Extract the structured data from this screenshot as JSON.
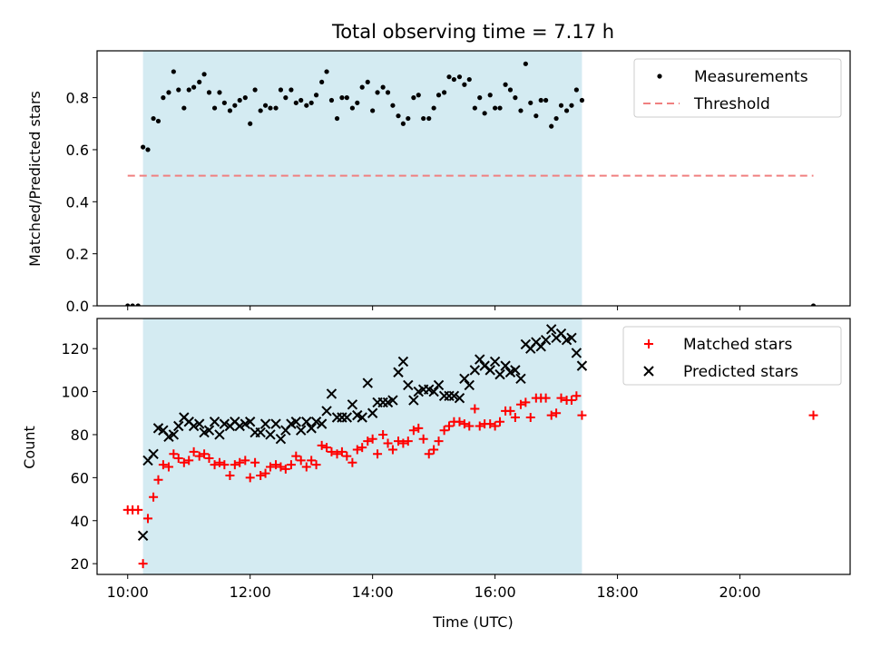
{
  "chart_data": {
    "type": "scatter",
    "title": "Total observing time = 7.17 h",
    "xlabel": "Time (UTC)",
    "x_unit": "hours UTC",
    "xlim": [
      9.5,
      21.8
    ],
    "x_ticks": [
      10,
      12,
      14,
      16,
      18,
      20
    ],
    "x_tick_labels": [
      "10:00",
      "12:00",
      "14:00",
      "16:00",
      "18:00",
      "20:00"
    ],
    "observing_window": [
      10.25,
      17.42
    ],
    "shading_color": "#d4ebf2",
    "panels": [
      {
        "ylabel": "Matched/Predicted stars",
        "ylim": [
          0,
          0.98
        ],
        "y_ticks": [
          0.0,
          0.2,
          0.4,
          0.6,
          0.8
        ],
        "y_tick_labels": [
          "0.0",
          "0.2",
          "0.4",
          "0.6",
          "0.8"
        ],
        "legend": {
          "position": "top-right",
          "entries": [
            "Measurements",
            "Threshold"
          ]
        },
        "series": [
          {
            "name": "Measurements",
            "marker": "dot",
            "color": "#000000",
            "x": [
              10.0,
              10.08,
              10.17,
              10.25,
              10.33,
              10.42,
              10.5,
              10.58,
              10.67,
              10.75,
              10.83,
              10.92,
              11.0,
              11.08,
              11.17,
              11.25,
              11.33,
              11.42,
              11.5,
              11.58,
              11.67,
              11.75,
              11.83,
              11.92,
              12.0,
              12.08,
              12.17,
              12.25,
              12.33,
              12.42,
              12.5,
              12.58,
              12.67,
              12.75,
              12.83,
              12.92,
              13.0,
              13.08,
              13.17,
              13.25,
              13.33,
              13.42,
              13.5,
              13.58,
              13.67,
              13.75,
              13.83,
              13.92,
              14.0,
              14.08,
              14.17,
              14.25,
              14.33,
              14.42,
              14.5,
              14.58,
              14.67,
              14.75,
              14.83,
              14.92,
              15.0,
              15.08,
              15.17,
              15.25,
              15.33,
              15.42,
              15.5,
              15.58,
              15.67,
              15.75,
              15.83,
              15.92,
              16.0,
              16.08,
              16.17,
              16.25,
              16.33,
              16.42,
              16.5,
              16.58,
              16.67,
              16.75,
              16.83,
              16.92,
              17.0,
              17.08,
              17.17,
              17.25,
              17.33,
              17.42,
              21.2
            ],
            "y": [
              0.0,
              0.0,
              0.0,
              0.61,
              0.6,
              0.72,
              0.71,
              0.8,
              0.82,
              0.9,
              0.83,
              0.76,
              0.83,
              0.84,
              0.86,
              0.89,
              0.82,
              0.76,
              0.82,
              0.78,
              0.75,
              0.77,
              0.79,
              0.8,
              0.7,
              0.83,
              0.75,
              0.77,
              0.76,
              0.76,
              0.83,
              0.8,
              0.83,
              0.78,
              0.79,
              0.77,
              0.78,
              0.81,
              0.86,
              0.9,
              0.79,
              0.72,
              0.8,
              0.8,
              0.76,
              0.78,
              0.84,
              0.86,
              0.75,
              0.82,
              0.84,
              0.82,
              0.77,
              0.73,
              0.7,
              0.72,
              0.8,
              0.81,
              0.72,
              0.72,
              0.76,
              0.81,
              0.82,
              0.88,
              0.87,
              0.88,
              0.85,
              0.87,
              0.76,
              0.8,
              0.74,
              0.81,
              0.76,
              0.76,
              0.85,
              0.83,
              0.8,
              0.75,
              0.93,
              0.78,
              0.73,
              0.79,
              0.79,
              0.69,
              0.72,
              0.77,
              0.75,
              0.77,
              0.83,
              0.79,
              0.0
            ]
          },
          {
            "name": "Threshold",
            "style": "dashed",
            "color": "#f08080",
            "x": [
              10.0,
              21.2
            ],
            "y": [
              0.5,
              0.5
            ]
          }
        ]
      },
      {
        "ylabel": "Count",
        "ylim": [
          15,
          134
        ],
        "y_ticks": [
          20,
          40,
          60,
          80,
          100,
          120
        ],
        "y_tick_labels": [
          "20",
          "40",
          "60",
          "80",
          "100",
          "120"
        ],
        "legend": {
          "position": "top-right",
          "entries": [
            "Matched stars",
            "Predicted stars"
          ]
        },
        "series": [
          {
            "name": "Matched stars",
            "marker": "plus",
            "color": "#ff0000",
            "x": [
              10.0,
              10.08,
              10.17,
              10.25,
              10.33,
              10.42,
              10.5,
              10.58,
              10.67,
              10.75,
              10.83,
              10.92,
              11.0,
              11.08,
              11.17,
              11.25,
              11.33,
              11.42,
              11.5,
              11.58,
              11.67,
              11.75,
              11.83,
              11.92,
              12.0,
              12.08,
              12.17,
              12.25,
              12.33,
              12.42,
              12.5,
              12.58,
              12.67,
              12.75,
              12.83,
              12.92,
              13.0,
              13.08,
              13.17,
              13.25,
              13.33,
              13.42,
              13.5,
              13.58,
              13.67,
              13.75,
              13.83,
              13.92,
              14.0,
              14.08,
              14.17,
              14.25,
              14.33,
              14.42,
              14.5,
              14.58,
              14.67,
              14.75,
              14.83,
              14.92,
              15.0,
              15.08,
              15.17,
              15.25,
              15.33,
              15.42,
              15.5,
              15.58,
              15.67,
              15.75,
              15.83,
              15.92,
              16.0,
              16.08,
              16.17,
              16.25,
              16.33,
              16.42,
              16.5,
              16.58,
              16.67,
              16.75,
              16.83,
              16.92,
              17.0,
              17.08,
              17.17,
              17.25,
              17.33,
              17.42,
              21.2
            ],
            "y": [
              45,
              45,
              45,
              20,
              41,
              51,
              59,
              66,
              65,
              71,
              69,
              67,
              68,
              72,
              70,
              71,
              69,
              66,
              67,
              66,
              61,
              66,
              67,
              68,
              60,
              67,
              61,
              62,
              65,
              66,
              65,
              64,
              66,
              70,
              68,
              65,
              68,
              66,
              75,
              74,
              72,
              71,
              72,
              70,
              67,
              73,
              74,
              77,
              78,
              71,
              80,
              76,
              73,
              77,
              76,
              77,
              82,
              83,
              78,
              71,
              73,
              77,
              82,
              84,
              86,
              86,
              85,
              84,
              92,
              84,
              85,
              85,
              84,
              86,
              91,
              91,
              88,
              94,
              95,
              88,
              97,
              97,
              97,
              89,
              90,
              97,
              96,
              96,
              98,
              89,
              89
            ]
          },
          {
            "name": "Predicted stars",
            "marker": "x",
            "color": "#000000",
            "x": [
              10.25,
              10.33,
              10.42,
              10.5,
              10.58,
              10.67,
              10.75,
              10.83,
              10.92,
              11.0,
              11.08,
              11.17,
              11.25,
              11.33,
              11.42,
              11.5,
              11.58,
              11.67,
              11.75,
              11.83,
              11.92,
              12.0,
              12.08,
              12.17,
              12.25,
              12.33,
              12.42,
              12.5,
              12.58,
              12.67,
              12.75,
              12.83,
              12.92,
              13.0,
              13.08,
              13.17,
              13.25,
              13.33,
              13.42,
              13.5,
              13.58,
              13.67,
              13.75,
              13.83,
              13.92,
              14.0,
              14.08,
              14.17,
              14.25,
              14.33,
              14.42,
              14.5,
              14.58,
              14.67,
              14.75,
              14.83,
              14.92,
              15.0,
              15.08,
              15.17,
              15.25,
              15.33,
              15.42,
              15.5,
              15.58,
              15.67,
              15.75,
              15.83,
              15.92,
              16.0,
              16.08,
              16.17,
              16.25,
              16.33,
              16.42,
              16.5,
              16.58,
              16.67,
              16.75,
              16.83,
              16.92,
              17.0,
              17.08,
              17.17,
              17.25,
              17.33,
              17.42
            ],
            "y": [
              33,
              68,
              71,
              83,
              82,
              79,
              80,
              84,
              88,
              86,
              84,
              85,
              81,
              82,
              86,
              80,
              85,
              84,
              86,
              84,
              85,
              86,
              81,
              81,
              85,
              80,
              85,
              78,
              82,
              85,
              86,
              82,
              86,
              83,
              86,
              85,
              91,
              99,
              88,
              88,
              88,
              94,
              89,
              88,
              104,
              90,
              95,
              95,
              95,
              96,
              109,
              114,
              103,
              96,
              100,
              101,
              101,
              100,
              103,
              98,
              98,
              98,
              97,
              106,
              103,
              110,
              115,
              112,
              110,
              114,
              108,
              112,
              109,
              110,
              106,
              122,
              120,
              123,
              121,
              124,
              129,
              125,
              127,
              124,
              125,
              118,
              112
            ]
          }
        ]
      }
    ]
  }
}
